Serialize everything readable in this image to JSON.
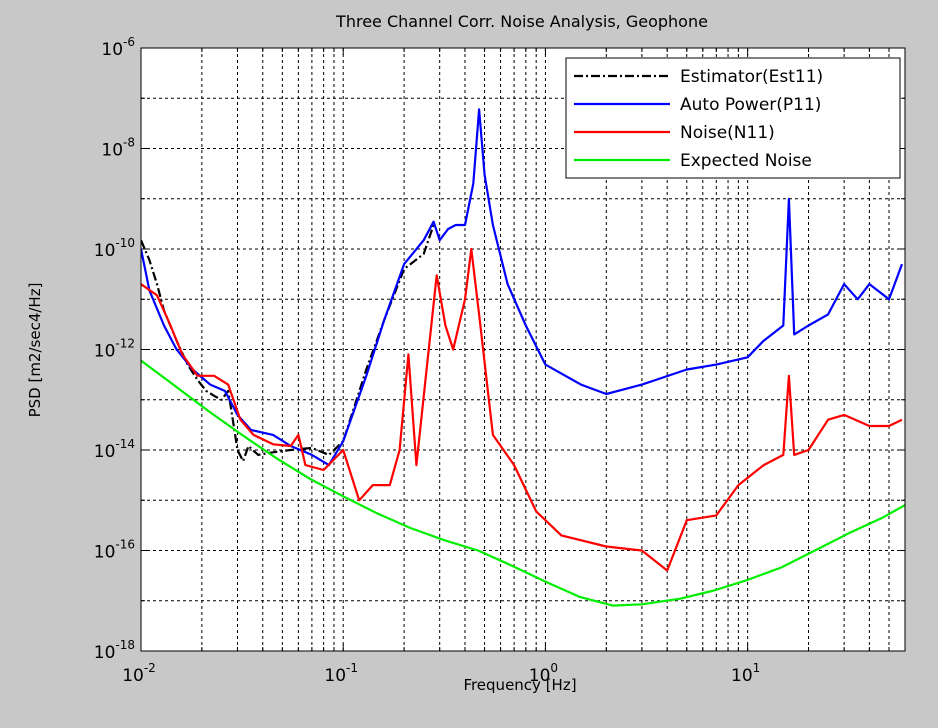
{
  "colors": {
    "figure_bg": "#c8c8c8",
    "axes_bg": "#ffffff",
    "estimator": "#000000",
    "auto_power": "#0000ff",
    "noise": "#ff0000",
    "expected_noise": "#00ee00"
  },
  "chart_data": {
    "type": "line",
    "title": "Three Channel Corr. Noise Analysis, Geophone",
    "xlabel": "Frequency [Hz]",
    "ylabel": "PSD [m2/sec4/Hz]",
    "xscale": "log",
    "yscale": "log",
    "xlim": [
      0.01,
      60
    ],
    "ylim": [
      1e-18,
      1e-06
    ],
    "x_ticks": [
      {
        "value": 0.01,
        "base": "10",
        "exp": "-2"
      },
      {
        "value": 0.1,
        "base": "10",
        "exp": "-1"
      },
      {
        "value": 1,
        "base": "10",
        "exp": "0"
      },
      {
        "value": 10,
        "base": "10",
        "exp": "1"
      }
    ],
    "y_ticks": [
      {
        "value": 1e-18,
        "base": "10",
        "exp": "-18"
      },
      {
        "value": 1e-16,
        "base": "10",
        "exp": "-16"
      },
      {
        "value": 1e-14,
        "base": "10",
        "exp": "-14"
      },
      {
        "value": 1e-12,
        "base": "10",
        "exp": "-12"
      },
      {
        "value": 1e-10,
        "base": "10",
        "exp": "-10"
      },
      {
        "value": 1e-08,
        "base": "10",
        "exp": "-8"
      },
      {
        "value": 1e-06,
        "base": "10",
        "exp": "-6"
      }
    ],
    "grid": true,
    "legend_position": "top-right",
    "series": [
      {
        "name": "Estimator(Est11)",
        "color": "#000000",
        "style": "dashdot",
        "points": [
          [
            0.01,
            1.5e-10
          ],
          [
            0.011,
            6e-11
          ],
          [
            0.012,
            2e-11
          ],
          [
            0.013,
            6e-12
          ],
          [
            0.015,
            1.5e-12
          ],
          [
            0.017,
            5e-13
          ],
          [
            0.019,
            2.5e-13
          ],
          [
            0.021,
            1.5e-13
          ],
          [
            0.023,
            1.2e-13
          ],
          [
            0.025,
            1e-13
          ],
          [
            0.027,
            1.5e-13
          ],
          [
            0.028,
            6e-14
          ],
          [
            0.03,
            1e-14
          ],
          [
            0.032,
            6e-15
          ],
          [
            0.034,
            1.2e-14
          ],
          [
            0.038,
            8e-15
          ],
          [
            0.045,
            9e-15
          ],
          [
            0.055,
            1e-14
          ],
          [
            0.07,
            1.1e-14
          ],
          [
            0.085,
            8e-15
          ],
          [
            0.1,
            1.5e-14
          ],
          [
            0.13,
            4e-13
          ],
          [
            0.16,
            4e-12
          ],
          [
            0.2,
            4e-11
          ],
          [
            0.25,
            8e-11
          ],
          [
            0.28,
            3e-10
          ]
        ]
      },
      {
        "name": "Auto Power(P11)",
        "color": "#0000ff",
        "style": "solid",
        "points": [
          [
            0.01,
            1e-10
          ],
          [
            0.011,
            1.5e-11
          ],
          [
            0.013,
            3e-12
          ],
          [
            0.015,
            1e-12
          ],
          [
            0.018,
            4e-13
          ],
          [
            0.022,
            2e-13
          ],
          [
            0.026,
            1.5e-13
          ],
          [
            0.03,
            5e-14
          ],
          [
            0.035,
            2.5e-14
          ],
          [
            0.045,
            2e-14
          ],
          [
            0.055,
            1.2e-14
          ],
          [
            0.07,
            8e-15
          ],
          [
            0.085,
            5e-15
          ],
          [
            0.1,
            1.5e-14
          ],
          [
            0.13,
            3e-13
          ],
          [
            0.16,
            4e-12
          ],
          [
            0.2,
            5e-11
          ],
          [
            0.25,
            1.5e-10
          ],
          [
            0.28,
            3.5e-10
          ],
          [
            0.3,
            1.5e-10
          ],
          [
            0.33,
            2.5e-10
          ],
          [
            0.36,
            3e-10
          ],
          [
            0.4,
            3e-10
          ],
          [
            0.44,
            2e-09
          ],
          [
            0.47,
            6e-08
          ],
          [
            0.5,
            3e-09
          ],
          [
            0.55,
            3e-10
          ],
          [
            0.65,
            2e-11
          ],
          [
            0.8,
            3e-12
          ],
          [
            1,
            5e-13
          ],
          [
            1.5,
            2e-13
          ],
          [
            2,
            1.3e-13
          ],
          [
            3,
            2e-13
          ],
          [
            5,
            4e-13
          ],
          [
            7,
            5e-13
          ],
          [
            10,
            7e-13
          ],
          [
            12,
            1.5e-12
          ],
          [
            15,
            3e-12
          ],
          [
            16,
            1e-09
          ],
          [
            17,
            2e-12
          ],
          [
            20,
            3e-12
          ],
          [
            25,
            5e-12
          ],
          [
            30,
            2e-11
          ],
          [
            35,
            1e-11
          ],
          [
            40,
            2e-11
          ],
          [
            50,
            1e-11
          ],
          [
            58,
            5e-11
          ]
        ]
      },
      {
        "name": "Noise(N11)",
        "color": "#ff0000",
        "style": "solid",
        "points": [
          [
            0.01,
            2e-11
          ],
          [
            0.012,
            1.2e-11
          ],
          [
            0.014,
            3e-12
          ],
          [
            0.016,
            8e-13
          ],
          [
            0.019,
            3e-13
          ],
          [
            0.023,
            3e-13
          ],
          [
            0.027,
            2e-13
          ],
          [
            0.031,
            4e-14
          ],
          [
            0.036,
            2e-14
          ],
          [
            0.045,
            1.3e-14
          ],
          [
            0.055,
            1.2e-14
          ],
          [
            0.06,
            2e-14
          ],
          [
            0.065,
            5e-15
          ],
          [
            0.08,
            4e-15
          ],
          [
            0.1,
            1e-14
          ],
          [
            0.12,
            1e-15
          ],
          [
            0.14,
            2e-15
          ],
          [
            0.17,
            2e-15
          ],
          [
            0.19,
            1e-14
          ],
          [
            0.21,
            8e-13
          ],
          [
            0.23,
            5e-15
          ],
          [
            0.26,
            5e-13
          ],
          [
            0.29,
            3e-11
          ],
          [
            0.32,
            3e-12
          ],
          [
            0.35,
            1e-12
          ],
          [
            0.4,
            1e-11
          ],
          [
            0.43,
            1e-10
          ],
          [
            0.47,
            5e-12
          ],
          [
            0.55,
            2e-14
          ],
          [
            0.7,
            5e-15
          ],
          [
            0.9,
            6e-16
          ],
          [
            1.2,
            2e-16
          ],
          [
            2,
            1.2e-16
          ],
          [
            3,
            1e-16
          ],
          [
            4,
            4e-17
          ],
          [
            5,
            4e-16
          ],
          [
            7,
            5e-16
          ],
          [
            9,
            2e-15
          ],
          [
            12,
            5e-15
          ],
          [
            15,
            8e-15
          ],
          [
            16,
            3e-13
          ],
          [
            17,
            8e-15
          ],
          [
            20,
            1e-14
          ],
          [
            25,
            4e-14
          ],
          [
            30,
            5e-14
          ],
          [
            40,
            3e-14
          ],
          [
            50,
            3e-14
          ],
          [
            58,
            4e-14
          ]
        ]
      },
      {
        "name": "Expected Noise",
        "color": "#00ee00",
        "style": "solid",
        "points": [
          [
            0.01,
            6e-13
          ],
          [
            0.0147,
            1.9e-13
          ],
          [
            0.0215,
            6e-14
          ],
          [
            0.0316,
            2e-14
          ],
          [
            0.0464,
            7e-15
          ],
          [
            0.0681,
            2.7e-15
          ],
          [
            0.1,
            1.2e-15
          ],
          [
            0.147,
            5.5e-16
          ],
          [
            0.215,
            2.8e-16
          ],
          [
            0.316,
            1.6e-16
          ],
          [
            0.464,
            1e-16
          ],
          [
            0.681,
            5e-17
          ],
          [
            1,
            2.4e-17
          ],
          [
            1.47,
            1.2e-17
          ],
          [
            2.15,
            8e-18
          ],
          [
            3,
            8.5e-18
          ],
          [
            4.64,
            1.1e-17
          ],
          [
            6.81,
            1.6e-17
          ],
          [
            10,
            2.6e-17
          ],
          [
            14.7,
            4.6e-17
          ],
          [
            21.5,
            1e-16
          ],
          [
            31.6,
            2.2e-16
          ],
          [
            46.4,
            4.5e-16
          ],
          [
            60,
            8e-16
          ]
        ]
      }
    ]
  }
}
